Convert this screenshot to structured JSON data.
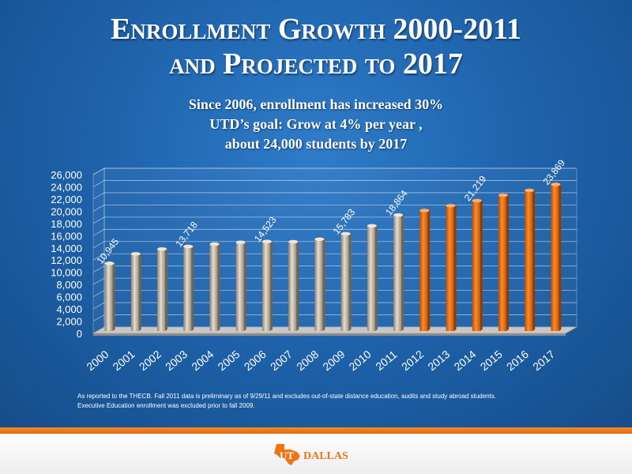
{
  "slide": {
    "title_line1": "Enrollment Growth 2000-2011",
    "title_line2": "and Projected to 2017",
    "subtitle_lines": [
      "Since 2006, enrollment has increased 30%",
      "UTD’s goal: Grow at 4% per year ,",
      "about 24,000 students by 2017"
    ],
    "footnote_lines": [
      "As reported to the THECB.  Fall 2011 data is preliminary as of 9/29/11 and excludes out-of-state distance education, audits and study abroad students.",
      "Executive Education enrollment was excluded prior to fall 2009."
    ],
    "logo_text": "UTDALLAS",
    "logo_visible": "UT DALLAS"
  },
  "colors": {
    "background": "#1f64ad",
    "actual_bar": "#c8bcaa",
    "projected_bar": "#f07512",
    "accent_band": "#e87722"
  },
  "chart_data": {
    "type": "bar",
    "categories": [
      "2000",
      "2001",
      "2002",
      "2003",
      "2004",
      "2005",
      "2006",
      "2007",
      "2008",
      "2009",
      "2010",
      "2011",
      "2012",
      "2013",
      "2014",
      "2015",
      "2016",
      "2017"
    ],
    "values": [
      10945,
      12500,
      13300,
      13718,
      14100,
      14400,
      14523,
      14500,
      14900,
      15783,
      17100,
      18864,
      19600,
      20400,
      21219,
      22100,
      22900,
      23869
    ],
    "projected_from_index": 12,
    "data_labels": {
      "0": "10,945",
      "3": "13,718",
      "6": "14,523",
      "9": "15,783",
      "11": "18,864",
      "14": "21,219",
      "17": "23,869"
    },
    "ylim": [
      0,
      26000
    ],
    "yticks": [
      0,
      2000,
      4000,
      6000,
      8000,
      10000,
      12000,
      14000,
      16000,
      18000,
      20000,
      22000,
      24000,
      26000
    ],
    "ytick_labels": [
      "0",
      "2,000",
      "4,000",
      "6,000",
      "8,000",
      "10,000",
      "12,000",
      "14,000",
      "16,000",
      "18,000",
      "20,000",
      "22,000",
      "24,000",
      "26,000"
    ],
    "grid": true,
    "three_d": true
  }
}
